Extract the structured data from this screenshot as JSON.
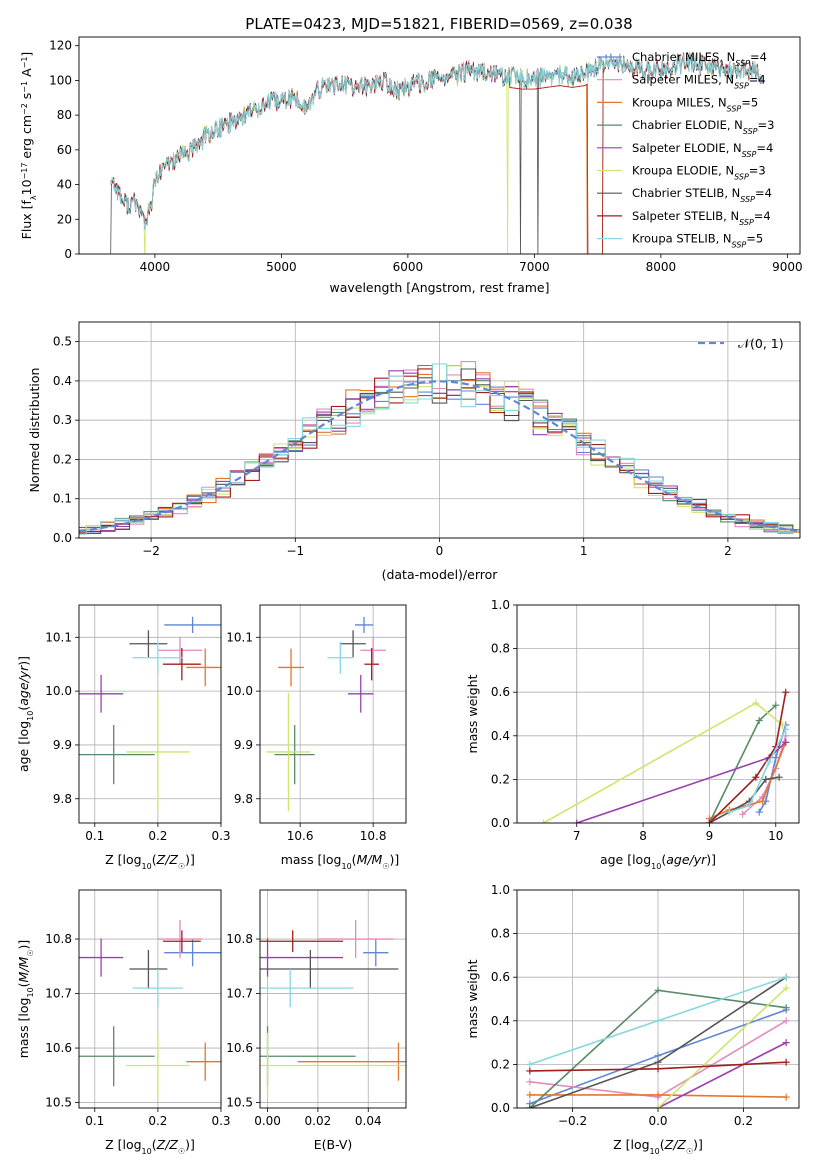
{
  "figure_title": "PLATE=0423, MJD=51821, FIBERID=0569, z=0.038",
  "colors": {
    "Chabrier MILES": "#5f86d6",
    "Salpeter MILES": "#e58ac1",
    "Kroupa MILES": "#e3772d",
    "Chabrier ELODIE": "#5a8a69",
    "Salpeter ELODIE": "#9a3fb0",
    "Kroupa ELODIE": "#cde66c",
    "Chabrier STELIB": "#555555",
    "Salpeter STELIB": "#a01e1e",
    "Kroupa STELIB": "#86d8df"
  },
  "chart_data": [
    {
      "id": "spectrum",
      "type": "line",
      "title": "PLATE=0423, MJD=51821, FIBERID=0569, z=0.038",
      "xlabel": "wavelength [Angstrom, rest frame]",
      "ylabel": "Flux [fλ10⁻¹⁷ erg cm⁻² s⁻¹ A⁻¹]",
      "xlim": [
        3400,
        9100
      ],
      "ylim": [
        0,
        125
      ],
      "xticks": [
        4000,
        5000,
        6000,
        7000,
        8000,
        9000
      ],
      "yticks": [
        0,
        20,
        40,
        60,
        80,
        100,
        120
      ],
      "legend": "upper right",
      "series_names": [
        "Chabrier MILES, N_SSP=4",
        "Salpeter MILES, N_SSP=4",
        "Kroupa MILES, N_SSP=5",
        "Chabrier ELODIE, N_SSP=3",
        "Salpeter ELODIE, N_SSP=4",
        "Kroupa ELODIE, N_SSP=3",
        "Chabrier STELIB, N_SSP=4",
        "Salpeter STELIB, N_SSP=4",
        "Kroupa STELIB, N_SSP=5"
      ],
      "series_legend": [
        {
          "name": "Chabrier MILES, N",
          "sub": "SSP",
          "tail": "=4",
          "key": "Chabrier MILES"
        },
        {
          "name": "Salpeter MILES, N",
          "sub": "SSP",
          "tail": "=4",
          "key": "Salpeter MILES"
        },
        {
          "name": "Kroupa MILES, N",
          "sub": "SSP",
          "tail": "=5",
          "key": "Kroupa MILES"
        },
        {
          "name": "Chabrier ELODIE, N",
          "sub": "SSP",
          "tail": "=3",
          "key": "Chabrier ELODIE"
        },
        {
          "name": "Salpeter ELODIE, N",
          "sub": "SSP",
          "tail": "=4",
          "key": "Salpeter ELODIE"
        },
        {
          "name": "Kroupa ELODIE, N",
          "sub": "SSP",
          "tail": "=3",
          "key": "Kroupa ELODIE"
        },
        {
          "name": "Chabrier STELIB, N",
          "sub": "SSP",
          "tail": "=4",
          "key": "Chabrier STELIB"
        },
        {
          "name": "Salpeter STELIB, N",
          "sub": "SSP",
          "tail": "=4",
          "key": "Salpeter STELIB"
        },
        {
          "name": "Kroupa STELIB, N",
          "sub": "SSP",
          "tail": "=5",
          "key": "Kroupa STELIB"
        }
      ],
      "continuum": [
        [
          3650,
          44
        ],
        [
          3700,
          38
        ],
        [
          3750,
          30
        ],
        [
          3800,
          28
        ],
        [
          3850,
          30
        ],
        [
          3900,
          22
        ],
        [
          3930,
          18
        ],
        [
          3970,
          28
        ],
        [
          4000,
          42
        ],
        [
          4100,
          52
        ],
        [
          4200,
          56
        ],
        [
          4300,
          60
        ],
        [
          4400,
          68
        ],
        [
          4500,
          72
        ],
        [
          4600,
          76
        ],
        [
          4700,
          80
        ],
        [
          4800,
          84
        ],
        [
          4900,
          87
        ],
        [
          5000,
          88
        ],
        [
          5100,
          90
        ],
        [
          5200,
          84
        ],
        [
          5300,
          95
        ],
        [
          5400,
          98
        ],
        [
          5500,
          97
        ],
        [
          5600,
          96
        ],
        [
          5700,
          97
        ],
        [
          5800,
          100
        ],
        [
          5900,
          94
        ],
        [
          6000,
          96
        ],
        [
          6100,
          99
        ],
        [
          6200,
          100
        ],
        [
          6300,
          102
        ],
        [
          6400,
          103
        ],
        [
          6500,
          106
        ],
        [
          6600,
          104
        ],
        [
          6700,
          103
        ],
        [
          6800,
          102
        ],
        [
          6900,
          101
        ],
        [
          7000,
          101
        ],
        [
          7100,
          102
        ],
        [
          7200,
          103
        ],
        [
          7300,
          102
        ],
        [
          7400,
          103
        ],
        [
          7500,
          108
        ],
        [
          7600,
          110
        ],
        [
          7700,
          109
        ],
        [
          7800,
          107
        ],
        [
          7900,
          106
        ],
        [
          8000,
          106
        ],
        [
          8100,
          108
        ],
        [
          8200,
          111
        ],
        [
          8300,
          109
        ],
        [
          8400,
          107
        ],
        [
          8500,
          105
        ],
        [
          8600,
          106
        ],
        [
          8700,
          106
        ],
        [
          8800,
          104
        ]
      ],
      "drops": [
        {
          "series": "Kroupa MILES",
          "x": 7420
        },
        {
          "series": "Salpeter STELIB",
          "x": 7425
        },
        {
          "series": "Kroupa ELODIE",
          "x": 6790
        },
        {
          "series": "Kroupa ELODIE",
          "x": 3920
        },
        {
          "series": "Chabrier STELIB",
          "x": 6890
        },
        {
          "series": "Chabrier STELIB",
          "x": 7030
        },
        {
          "series": "Chabrier STELIB",
          "x": 3650
        }
      ]
    },
    {
      "id": "residuals",
      "type": "line",
      "xlabel": "(data-model)/error",
      "ylabel": "Normed distribution",
      "xlim": [
        -2.5,
        2.5
      ],
      "ylim": [
        0,
        0.55
      ],
      "xticks": [
        -2,
        -1,
        0,
        1,
        2
      ],
      "yticks": [
        0.0,
        0.1,
        0.2,
        0.3,
        0.4,
        0.5
      ],
      "grid": true,
      "legend": "upper right",
      "reference_label": "N(0,1)",
      "reference_color": "#5f86d6",
      "bin_width": 0.1
    },
    {
      "id": "age_vs_Z",
      "type": "scatter",
      "xlabel": "Z [log10(Z/Z☉)]",
      "ylabel": "age [log10(age/yr)]",
      "xlim": [
        0.075,
        0.3
      ],
      "ylim": [
        9.755,
        10.16
      ],
      "xticks": [
        0.1,
        0.2,
        0.3
      ],
      "yticks": [
        9.8,
        9.9,
        10.0,
        10.1
      ],
      "grid": true
    },
    {
      "id": "age_vs_mass",
      "type": "scatter",
      "xlabel": "mass [log10(M/M☉)]",
      "xlim": [
        10.49,
        10.89
      ],
      "ylim": [
        9.755,
        10.16
      ],
      "xticks": [
        10.6,
        10.8
      ],
      "yticks": [
        9.8,
        9.9,
        10.0,
        10.1
      ],
      "grid": true
    },
    {
      "id": "massweight_vs_age",
      "type": "line",
      "xlabel": "age [log10(age/yr)]",
      "ylabel": "mass weight",
      "xlim": [
        6.1,
        10.35
      ],
      "ylim": [
        0,
        1.0
      ],
      "xticks": [
        7,
        8,
        9,
        10
      ],
      "yticks": [
        0.0,
        0.2,
        0.4,
        0.6,
        0.8,
        1.0
      ],
      "grid": true
    },
    {
      "id": "mass_vs_Z",
      "type": "scatter",
      "xlabel": "Z [log10(Z/Z☉)]",
      "ylabel": "mass [log10(M/M☉)]",
      "xlim": [
        0.075,
        0.3
      ],
      "ylim": [
        10.49,
        10.89
      ],
      "xticks": [
        0.1,
        0.2,
        0.3
      ],
      "yticks": [
        10.5,
        10.6,
        10.7,
        10.8
      ],
      "grid": true
    },
    {
      "id": "mass_vs_EBV",
      "type": "scatter",
      "xlabel": "E(B-V)",
      "xlim": [
        -0.003,
        0.055
      ],
      "ylim": [
        10.49,
        10.89
      ],
      "xticks": [
        0.0,
        0.02,
        0.04
      ],
      "yticks": [
        10.5,
        10.6,
        10.7,
        10.8
      ],
      "grid": true
    },
    {
      "id": "massweight_vs_Z",
      "type": "line",
      "xlabel": "Z [log10(Z/Z☉)]",
      "ylabel": "mass weight",
      "xlim": [
        -0.33,
        0.33
      ],
      "ylim": [
        0,
        1.0
      ],
      "xticks": [
        -0.2,
        0.0,
        0.2
      ],
      "yticks": [
        0.0,
        0.2,
        0.4,
        0.6,
        0.8,
        1.0
      ],
      "grid": true
    }
  ],
  "fits": [
    {
      "key": "Chabrier MILES",
      "Z": 0.255,
      "Z_err": 0.045,
      "age": 10.123,
      "age_err": 0.015,
      "mass": 10.775,
      "mass_err": 0.025,
      "ebv": 0.043,
      "ebv_err": 0.005,
      "ages": [
        9.75,
        9.85,
        10.0,
        10.15
      ],
      "age_w": [
        0.05,
        0.1,
        0.3,
        0.45
      ],
      "zs": [
        -0.3,
        0.0,
        0.3
      ],
      "z_w": [
        0.02,
        0.24,
        0.45
      ]
    },
    {
      "key": "Salpeter MILES",
      "Z": 0.235,
      "Z_err": 0.035,
      "age": 10.076,
      "age_err": 0.025,
      "mass": 10.8,
      "mass_err": 0.035,
      "ebv": 0.035,
      "ebv_err": 0.015,
      "ages": [
        9.5,
        9.8,
        10.0,
        10.15
      ],
      "age_w": [
        0.04,
        0.12,
        0.25,
        0.4
      ],
      "zs": [
        -0.3,
        0.0,
        0.3
      ],
      "z_w": [
        0.12,
        0.05,
        0.4
      ]
    },
    {
      "key": "Kroupa MILES",
      "Z": 0.275,
      "Z_err": 0.03,
      "age": 10.044,
      "age_err": 0.035,
      "mass": 10.575,
      "mass_err": 0.035,
      "ebv": 0.052,
      "ebv_err": 0.04,
      "ages": [
        9.0,
        9.3,
        9.8,
        10.15
      ],
      "age_w": [
        0.02,
        0.06,
        0.1,
        0.37
      ],
      "zs": [
        -0.3,
        0.0,
        0.3
      ],
      "z_w": [
        0.06,
        0.06,
        0.05
      ]
    },
    {
      "key": "Chabrier ELODIE",
      "Z": 0.13,
      "Z_err": 0.065,
      "age": 9.882,
      "age_err": 0.055,
      "mass": 10.585,
      "mass_err": 0.055,
      "ebv": 0.0,
      "ebv_err": 0.035,
      "ages": [
        9.0,
        9.75,
        10.0
      ],
      "age_w": [
        0.0,
        0.47,
        0.54
      ],
      "zs": [
        -0.3,
        0.0,
        0.3
      ],
      "z_w": [
        0.0,
        0.54,
        0.46
      ]
    },
    {
      "key": "Salpeter ELODIE",
      "Z": 0.11,
      "Z_err": 0.035,
      "age": 9.995,
      "age_err": 0.035,
      "mass": 10.766,
      "mass_err": 0.035,
      "ebv": 0.0,
      "ebv_err": 0.03,
      "ages": [
        7.0,
        9.9,
        10.15
      ],
      "age_w": [
        0.0,
        0.3,
        0.37
      ],
      "zs": [
        -0.3,
        0.0,
        0.3
      ],
      "z_w": [
        0.0,
        0.0,
        0.3
      ]
    },
    {
      "key": "Kroupa ELODIE",
      "Z": 0.2,
      "Z_err": 0.05,
      "age": 9.887,
      "age_err": 0.11,
      "mass": 10.568,
      "mass_err": 0.06,
      "ebv": 0.0,
      "ebv_err": 0.07,
      "ages": [
        6.5,
        9.7,
        10.1
      ],
      "age_w": [
        0.0,
        0.55,
        0.45
      ],
      "zs": [
        -0.3,
        0.0,
        0.3
      ],
      "z_w": [
        0.0,
        0.0,
        0.55
      ]
    },
    {
      "key": "Chabrier STELIB",
      "Z": 0.185,
      "Z_err": 0.03,
      "age": 10.088,
      "age_err": 0.025,
      "mass": 10.745,
      "mass_err": 0.035,
      "ebv": 0.017,
      "ebv_err": 0.035,
      "ages": [
        9.0,
        9.6,
        9.85,
        10.05
      ],
      "age_w": [
        0.0,
        0.1,
        0.2,
        0.21
      ],
      "zs": [
        -0.3,
        0.0,
        0.3
      ],
      "z_w": [
        0.0,
        0.21,
        0.6
      ]
    },
    {
      "key": "Salpeter STELIB",
      "Z": 0.238,
      "Z_err": 0.03,
      "age": 10.05,
      "age_err": 0.03,
      "mass": 10.796,
      "mass_err": 0.02,
      "ebv": 0.01,
      "ebv_err": 0.02,
      "ages": [
        9.0,
        9.7,
        10.0,
        10.15
      ],
      "age_w": [
        0.0,
        0.21,
        0.35,
        0.6
      ],
      "zs": [
        -0.3,
        0.0,
        0.3
      ],
      "z_w": [
        0.17,
        0.18,
        0.21
      ]
    },
    {
      "key": "Kroupa STELIB",
      "Z": 0.2,
      "Z_err": 0.04,
      "age": 10.062,
      "age_err": 0.03,
      "mass": 10.71,
      "mass_err": 0.035,
      "ebv": 0.009,
      "ebv_err": 0.025,
      "ages": [
        9.3,
        9.6,
        9.9,
        10.15
      ],
      "age_w": [
        0.05,
        0.08,
        0.28,
        0.43
      ],
      "zs": [
        -0.3,
        0.0,
        0.3
      ],
      "z_w": [
        0.2,
        0.4,
        0.6
      ]
    }
  ]
}
